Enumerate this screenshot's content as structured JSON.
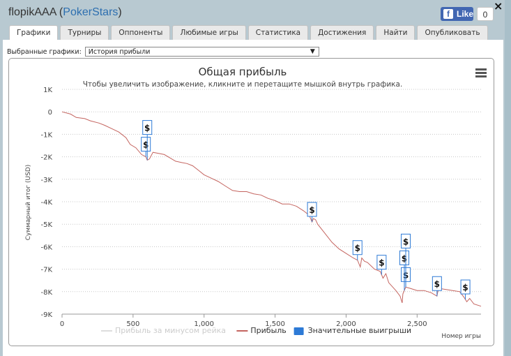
{
  "header": {
    "user": "flopikAAA",
    "site": "PokerStars",
    "like_label": "Like",
    "like_count": "0",
    "close_label": "×"
  },
  "tabs": [
    {
      "label": "Графики",
      "active": true
    },
    {
      "label": "Турниры",
      "active": false
    },
    {
      "label": "Оппоненты",
      "active": false
    },
    {
      "label": "Любимые игры",
      "active": false
    },
    {
      "label": "Статистика",
      "active": false
    },
    {
      "label": "Достижения",
      "active": false
    },
    {
      "label": "Найти",
      "active": false
    },
    {
      "label": "Опубликовать",
      "active": false
    }
  ],
  "selector": {
    "label": "Выбранные графики:",
    "value": "История прибыли"
  },
  "chart_data": {
    "type": "line",
    "title": "Общая прибыль",
    "subtitle": "Чтобы увеличить изображение, кликните и перетащите мышкой внутрь графика.",
    "ylabel": "Суммарный итог (USD)",
    "xlabel": "Номер игры",
    "xlim": [
      0,
      2950
    ],
    "ylim": [
      -9000,
      1000
    ],
    "x_ticks": [
      0,
      500,
      1000,
      1500,
      2000,
      2500
    ],
    "x_tick_labels": [
      "0",
      "500",
      "1,000",
      "1,500",
      "2,000",
      "2,500"
    ],
    "y_ticks": [
      1000,
      0,
      -1000,
      -2000,
      -3000,
      -4000,
      -5000,
      -6000,
      -7000,
      -8000,
      -9000
    ],
    "y_tick_labels": [
      "1K",
      "0",
      "-1K",
      "-2K",
      "-3K",
      "-4K",
      "-5K",
      "-6K",
      "-7K",
      "-8K",
      "-9K"
    ],
    "grid": true,
    "legend_position": "bottom",
    "series": [
      {
        "name": "Прибыль за минусом рейка",
        "color": "#dddddd",
        "visible": false,
        "values": []
      },
      {
        "name": "Прибыль",
        "color": "#c4645f",
        "x": [
          0,
          60,
          100,
          160,
          200,
          260,
          300,
          350,
          400,
          450,
          480,
          520,
          560,
          590,
          600,
          615,
          640,
          680,
          720,
          760,
          800,
          840,
          880,
          920,
          960,
          1000,
          1050,
          1100,
          1150,
          1200,
          1250,
          1300,
          1350,
          1400,
          1450,
          1500,
          1550,
          1600,
          1650,
          1700,
          1740,
          1760,
          1770,
          1785,
          1800,
          1850,
          1900,
          1950,
          2000,
          2050,
          2080,
          2100,
          2110,
          2130,
          2150,
          2200,
          2240,
          2260,
          2280,
          2300,
          2350,
          2380,
          2395,
          2400,
          2420,
          2450,
          2500,
          2550,
          2600,
          2640,
          2650,
          2700,
          2750,
          2800,
          2830,
          2850,
          2870,
          2900,
          2950
        ],
        "values": [
          0,
          -100,
          -250,
          -300,
          -400,
          -500,
          -600,
          -750,
          -900,
          -1150,
          -1450,
          -1600,
          -1900,
          -2000,
          -2150,
          -2100,
          -1800,
          -1850,
          -1900,
          -2050,
          -2200,
          -2250,
          -2300,
          -2400,
          -2600,
          -2800,
          -2950,
          -3100,
          -3300,
          -3500,
          -3550,
          -3550,
          -3650,
          -3700,
          -3850,
          -3950,
          -4100,
          -4100,
          -4200,
          -4400,
          -4600,
          -4900,
          -4750,
          -4800,
          -5000,
          -5400,
          -5800,
          -6100,
          -6300,
          -6500,
          -6600,
          -6900,
          -6500,
          -6650,
          -6700,
          -7000,
          -7100,
          -7400,
          -7200,
          -7600,
          -7950,
          -8200,
          -8500,
          -8100,
          -7800,
          -7850,
          -7950,
          -7950,
          -8050,
          -8200,
          -7850,
          -7900,
          -7950,
          -8000,
          -8250,
          -8450,
          -8300,
          -8550,
          -8650
        ]
      },
      {
        "name": "Значительные выигрыши",
        "color": "#2d7ad6",
        "type": "flag",
        "marker": "$",
        "x": [
          590,
          600,
          1760,
          2080,
          2250,
          2420,
          2410,
          2420,
          2640,
          2840
        ]
      }
    ]
  }
}
